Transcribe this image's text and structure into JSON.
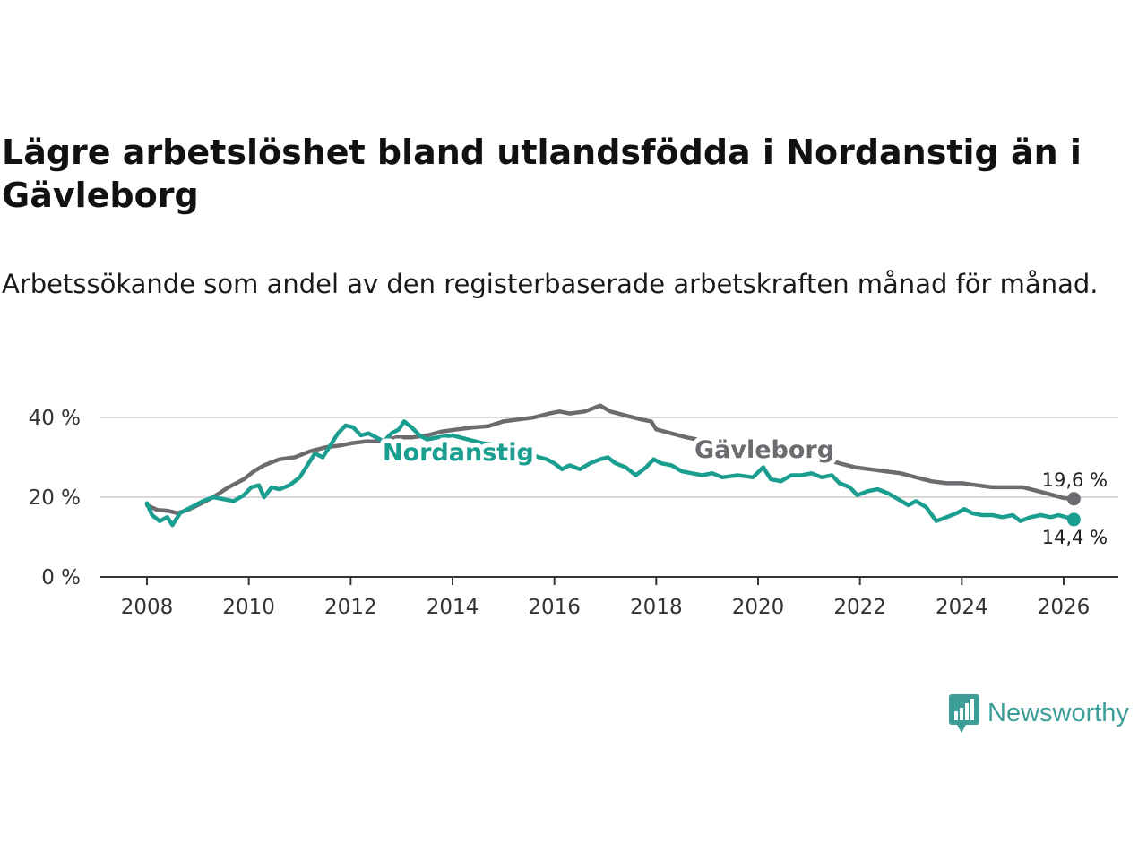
{
  "header": {
    "title": "Lägre arbetslöshet bland utlandsfödda i Nordanstig än i Gävleborg",
    "subtitle": "Arbetssökande som andel av den registerbaserade arbetskraften månad för månad."
  },
  "brand": {
    "name": "Newsworthy",
    "icon": "newsworthy-logo-icon",
    "color": "#3d9e98"
  },
  "colors": {
    "nordanstig": "#1a9e8f",
    "gavleborg": "#6d6b70",
    "grid": "#d9d9d9",
    "axis": "#333333"
  },
  "chart_data": {
    "type": "line",
    "title": "Lägre arbetslöshet bland utlandsfödda i Nordanstig än i Gävleborg",
    "xlabel": "",
    "ylabel": "",
    "xlim": [
      2007.5,
      2027.3
    ],
    "ylim": [
      0,
      45
    ],
    "x_ticks": [
      2008,
      2010,
      2012,
      2014,
      2016,
      2018,
      2020,
      2022,
      2024,
      2026
    ],
    "x_tick_labels": [
      "2008",
      "2010",
      "2012",
      "2014",
      "2016",
      "2018",
      "2020",
      "2022",
      "2024",
      "2026"
    ],
    "y_ticks": [
      0,
      20,
      40
    ],
    "y_tick_labels": [
      "0 %",
      "20 %",
      "40 %"
    ],
    "grid": true,
    "series": [
      {
        "name": "Gävleborg",
        "label": "Gävleborg",
        "color": "#6d6b70",
        "end_label": "19,6 %",
        "points": [
          [
            2008.0,
            18.0
          ],
          [
            2008.2,
            16.8
          ],
          [
            2008.4,
            16.6
          ],
          [
            2008.6,
            16.0
          ],
          [
            2008.8,
            16.8
          ],
          [
            2009.0,
            18.0
          ],
          [
            2009.3,
            20.0
          ],
          [
            2009.6,
            22.5
          ],
          [
            2009.9,
            24.5
          ],
          [
            2010.1,
            26.5
          ],
          [
            2010.3,
            28.0
          ],
          [
            2010.6,
            29.5
          ],
          [
            2010.9,
            30.0
          ],
          [
            2011.2,
            31.5
          ],
          [
            2011.5,
            32.5
          ],
          [
            2011.8,
            33.0
          ],
          [
            2012.0,
            33.5
          ],
          [
            2012.3,
            34.0
          ],
          [
            2012.6,
            34.0
          ],
          [
            2012.9,
            35.0
          ],
          [
            2013.2,
            35.0
          ],
          [
            2013.5,
            35.5
          ],
          [
            2013.8,
            36.5
          ],
          [
            2014.1,
            37.0
          ],
          [
            2014.4,
            37.5
          ],
          [
            2014.7,
            37.8
          ],
          [
            2015.0,
            39.0
          ],
          [
            2015.3,
            39.5
          ],
          [
            2015.6,
            40.0
          ],
          [
            2015.9,
            41.0
          ],
          [
            2016.1,
            41.5
          ],
          [
            2016.3,
            41.0
          ],
          [
            2016.6,
            41.5
          ],
          [
            2016.9,
            43.0
          ],
          [
            2017.1,
            41.5
          ],
          [
            2017.4,
            40.5
          ],
          [
            2017.7,
            39.5
          ],
          [
            2017.9,
            39.0
          ],
          [
            2018.0,
            37.0
          ],
          [
            2018.3,
            36.0
          ],
          [
            2018.6,
            35.0
          ],
          [
            2018.8,
            34.5
          ],
          [
            2019.0,
            34.0
          ],
          [
            2019.4,
            33.0
          ],
          [
            2019.8,
            32.0
          ],
          [
            2020.2,
            31.5
          ],
          [
            2020.6,
            31.0
          ],
          [
            2021.0,
            30.0
          ],
          [
            2021.3,
            29.5
          ],
          [
            2021.6,
            28.5
          ],
          [
            2021.9,
            27.5
          ],
          [
            2022.2,
            27.0
          ],
          [
            2022.5,
            26.5
          ],
          [
            2022.8,
            26.0
          ],
          [
            2023.1,
            25.0
          ],
          [
            2023.4,
            24.0
          ],
          [
            2023.7,
            23.5
          ],
          [
            2024.0,
            23.5
          ],
          [
            2024.3,
            23.0
          ],
          [
            2024.6,
            22.5
          ],
          [
            2024.9,
            22.5
          ],
          [
            2025.2,
            22.5
          ],
          [
            2025.5,
            21.5
          ],
          [
            2025.8,
            20.5
          ],
          [
            2026.0,
            19.8
          ],
          [
            2026.2,
            19.6
          ]
        ]
      },
      {
        "name": "Nordanstig",
        "label": "Nordanstig",
        "color": "#1a9e8f",
        "end_label": "14,4 %",
        "points": [
          [
            2008.0,
            18.5
          ],
          [
            2008.1,
            15.5
          ],
          [
            2008.25,
            14.0
          ],
          [
            2008.4,
            15.0
          ],
          [
            2008.5,
            13.0
          ],
          [
            2008.65,
            16.0
          ],
          [
            2008.8,
            17.0
          ],
          [
            2008.95,
            18.0
          ],
          [
            2009.1,
            19.0
          ],
          [
            2009.3,
            20.0
          ],
          [
            2009.5,
            19.5
          ],
          [
            2009.7,
            19.0
          ],
          [
            2009.9,
            20.5
          ],
          [
            2010.05,
            22.5
          ],
          [
            2010.2,
            23.0
          ],
          [
            2010.3,
            20.0
          ],
          [
            2010.45,
            22.5
          ],
          [
            2010.6,
            22.0
          ],
          [
            2010.8,
            23.0
          ],
          [
            2011.0,
            25.0
          ],
          [
            2011.15,
            28.0
          ],
          [
            2011.3,
            31.0
          ],
          [
            2011.45,
            30.0
          ],
          [
            2011.6,
            33.0
          ],
          [
            2011.75,
            36.0
          ],
          [
            2011.9,
            38.0
          ],
          [
            2012.05,
            37.5
          ],
          [
            2012.2,
            35.5
          ],
          [
            2012.35,
            36.0
          ],
          [
            2012.5,
            35.0
          ],
          [
            2012.65,
            34.0
          ],
          [
            2012.8,
            36.0
          ],
          [
            2012.95,
            37.0
          ],
          [
            2013.05,
            39.0
          ],
          [
            2013.2,
            37.5
          ],
          [
            2013.35,
            35.5
          ],
          [
            2013.5,
            34.5
          ],
          [
            2013.7,
            35.0
          ],
          [
            2014.0,
            35.5
          ],
          [
            2014.3,
            34.5
          ],
          [
            2014.6,
            33.5
          ],
          [
            2014.9,
            33.0
          ],
          [
            2015.2,
            32.0
          ],
          [
            2015.5,
            31.0
          ],
          [
            2015.7,
            30.0
          ],
          [
            2015.85,
            29.5
          ],
          [
            2016.0,
            28.5
          ],
          [
            2016.15,
            27.0
          ],
          [
            2016.3,
            28.0
          ],
          [
            2016.5,
            27.0
          ],
          [
            2016.7,
            28.5
          ],
          [
            2016.9,
            29.5
          ],
          [
            2017.05,
            30.0
          ],
          [
            2017.2,
            28.5
          ],
          [
            2017.4,
            27.5
          ],
          [
            2017.6,
            25.5
          ],
          [
            2017.8,
            27.5
          ],
          [
            2017.95,
            29.5
          ],
          [
            2018.1,
            28.5
          ],
          [
            2018.3,
            28.0
          ],
          [
            2018.5,
            26.5
          ],
          [
            2018.7,
            26.0
          ],
          [
            2018.9,
            25.5
          ],
          [
            2019.1,
            26.0
          ],
          [
            2019.3,
            25.0
          ],
          [
            2019.6,
            25.5
          ],
          [
            2019.9,
            25.0
          ],
          [
            2020.1,
            27.5
          ],
          [
            2020.25,
            24.5
          ],
          [
            2020.45,
            24.0
          ],
          [
            2020.65,
            25.5
          ],
          [
            2020.85,
            25.5
          ],
          [
            2021.05,
            26.0
          ],
          [
            2021.25,
            25.0
          ],
          [
            2021.45,
            25.5
          ],
          [
            2021.6,
            23.5
          ],
          [
            2021.8,
            22.5
          ],
          [
            2021.95,
            20.5
          ],
          [
            2022.15,
            21.5
          ],
          [
            2022.35,
            22.0
          ],
          [
            2022.55,
            21.0
          ],
          [
            2022.75,
            19.5
          ],
          [
            2022.95,
            18.0
          ],
          [
            2023.1,
            19.0
          ],
          [
            2023.3,
            17.5
          ],
          [
            2023.5,
            14.0
          ],
          [
            2023.7,
            15.0
          ],
          [
            2023.9,
            16.0
          ],
          [
            2024.05,
            17.0
          ],
          [
            2024.2,
            16.0
          ],
          [
            2024.4,
            15.5
          ],
          [
            2024.6,
            15.5
          ],
          [
            2024.8,
            15.0
          ],
          [
            2025.0,
            15.5
          ],
          [
            2025.15,
            14.0
          ],
          [
            2025.35,
            15.0
          ],
          [
            2025.55,
            15.5
          ],
          [
            2025.75,
            15.0
          ],
          [
            2025.9,
            15.5
          ],
          [
            2026.05,
            15.0
          ],
          [
            2026.2,
            14.4
          ]
        ]
      }
    ]
  }
}
